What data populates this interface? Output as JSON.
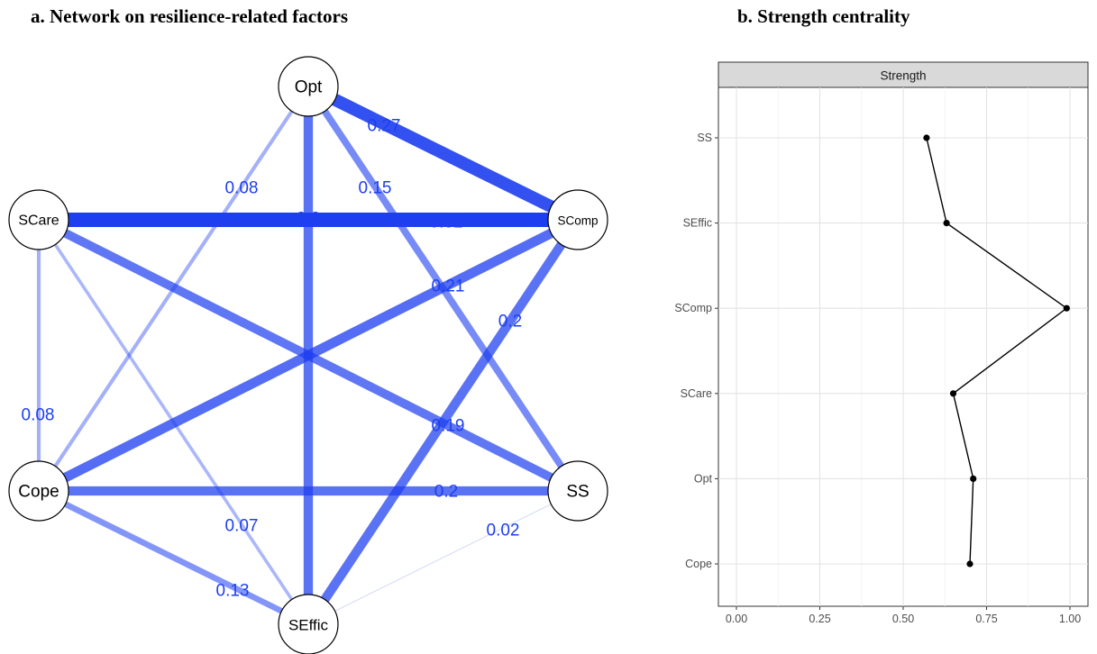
{
  "panel_a_title": "a. Network on resilience-related factors",
  "panel_b_title": "b. Strength centrality",
  "chart_data": [
    {
      "type": "network",
      "nodes": [
        "Opt",
        "SCare",
        "SComp",
        "Cope",
        "SS",
        "SEffic"
      ],
      "edges": [
        {
          "from": "Opt",
          "to": "SComp",
          "weight": 0.27,
          "label": "0.27"
        },
        {
          "from": "Opt",
          "to": "Cope",
          "weight": 0.08,
          "label": "0.08"
        },
        {
          "from": "Opt",
          "to": "SS",
          "weight": 0.15,
          "label": "0.15"
        },
        {
          "from": "Opt",
          "to": "SEffic",
          "weight": 0.2,
          "label": "0.2"
        },
        {
          "from": "SCare",
          "to": "SComp",
          "weight": 0.31,
          "label": "0.31"
        },
        {
          "from": "SCare",
          "to": "Cope",
          "weight": 0.08,
          "label": "0.08"
        },
        {
          "from": "SCare",
          "to": "SS",
          "weight": 0.19,
          "label": "0.19"
        },
        {
          "from": "SCare",
          "to": "SEffic",
          "weight": 0.07,
          "label": "0.07"
        },
        {
          "from": "SComp",
          "to": "Cope",
          "weight": 0.21,
          "label": "0.21"
        },
        {
          "from": "SComp",
          "to": "SEffic",
          "weight": 0.2,
          "label": "0.2"
        },
        {
          "from": "Cope",
          "to": "SS",
          "weight": 0.2,
          "label": "0.2"
        },
        {
          "from": "Cope",
          "to": "SEffic",
          "weight": 0.13,
          "label": "0.13"
        },
        {
          "from": "SS",
          "to": "SEffic",
          "weight": 0.02,
          "label": "0.02"
        }
      ],
      "edge_color": "#1e3ff0"
    },
    {
      "type": "line",
      "facet_label": "Strength",
      "categories": [
        "SS",
        "SEffic",
        "SComp",
        "SCare",
        "Opt",
        "Cope"
      ],
      "values": [
        0.57,
        0.63,
        0.99,
        0.65,
        0.71,
        0.7
      ],
      "xlim": [
        -0.04,
        1.0
      ],
      "xticks": [
        "0.00",
        "0.25",
        "0.50",
        "0.75",
        "1.00"
      ],
      "grid": true
    }
  ]
}
